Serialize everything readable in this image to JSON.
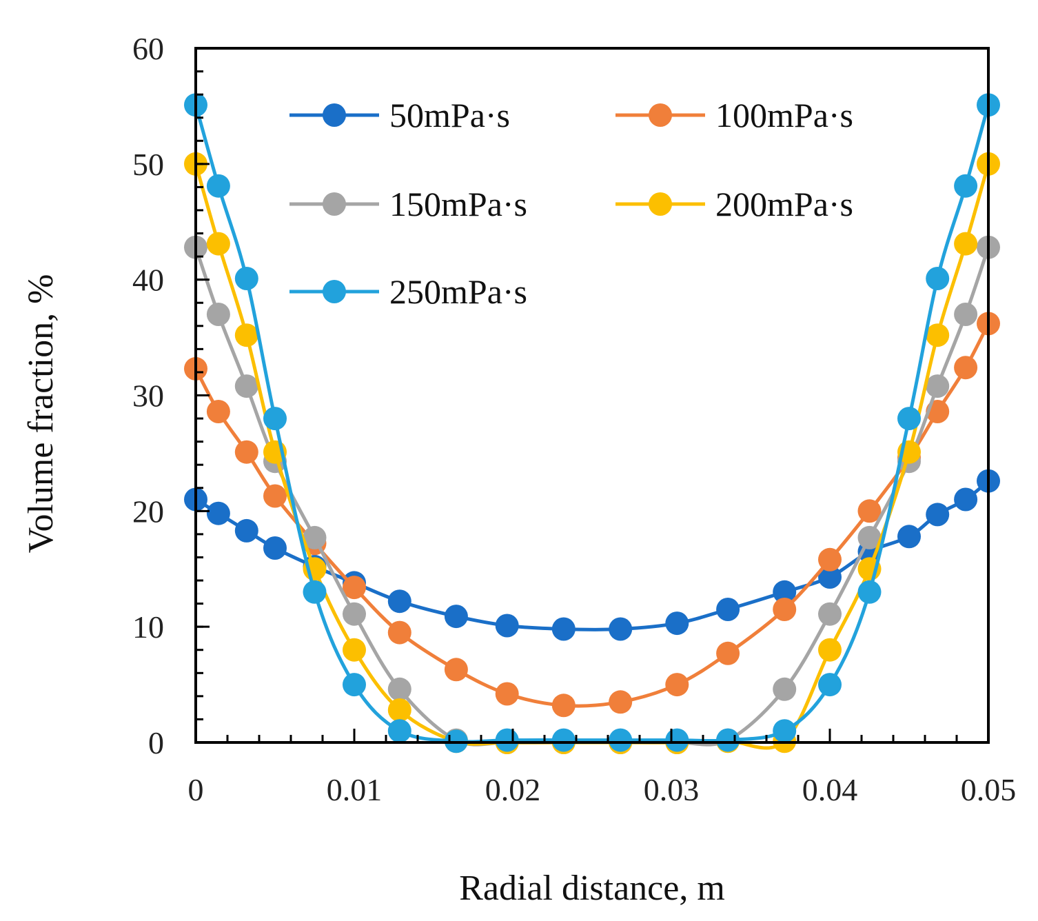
{
  "chart_data": {
    "type": "line",
    "title": "",
    "xlabel": "Radial distance, m",
    "ylabel": "Volume fraction, %",
    "xlim": [
      0,
      0.05
    ],
    "ylim": [
      0,
      60
    ],
    "xticks": [
      0,
      0.01,
      0.02,
      0.03,
      0.04,
      0.05
    ],
    "xtick_labels": [
      "0",
      "0.01",
      "0.02",
      "0.03",
      "0.04",
      "0.05"
    ],
    "yticks": [
      0,
      10,
      20,
      30,
      40,
      50,
      60
    ],
    "ytick_labels": [
      "0",
      "10",
      "20",
      "30",
      "40",
      "50",
      "60"
    ],
    "grid": false,
    "legend_position": "top",
    "x": [
      0,
      0.00143,
      0.00321,
      0.005,
      0.0075,
      0.01,
      0.01286,
      0.01643,
      0.01964,
      0.02321,
      0.02679,
      0.03036,
      0.03357,
      0.03714,
      0.04,
      0.0425,
      0.045,
      0.04679,
      0.04857,
      0.05
    ],
    "series": [
      {
        "name": "50mPa·s",
        "color": "#1a6fc8",
        "values": [
          21,
          19.8,
          18.3,
          16.8,
          15.2,
          13.8,
          12.2,
          10.9,
          10.1,
          9.8,
          9.8,
          10.3,
          11.5,
          13,
          14.3,
          16.5,
          17.8,
          19.7,
          21,
          22.6
        ]
      },
      {
        "name": "100mPa·s",
        "color": "#f07f3a",
        "values": [
          32.3,
          28.6,
          25.1,
          21.3,
          17.2,
          13.4,
          9.5,
          6.3,
          4.2,
          3.2,
          3.5,
          5,
          7.7,
          11.5,
          15.8,
          20,
          24.6,
          28.6,
          32.4,
          36.2
        ]
      },
      {
        "name": "150mPa·s",
        "color": "#a5a5a5",
        "values": [
          42.8,
          37,
          30.8,
          24.3,
          17.7,
          11.1,
          4.6,
          0.2,
          0,
          0,
          0,
          0,
          0.2,
          4.6,
          11.1,
          17.7,
          24.3,
          30.8,
          37,
          42.8
        ]
      },
      {
        "name": "200mPa·s",
        "color": "#fcbf00",
        "values": [
          50,
          43.1,
          35.2,
          25.1,
          15,
          8,
          2.8,
          0.1,
          0,
          0,
          0,
          0,
          0.1,
          0.1,
          8,
          15,
          25.1,
          35.2,
          43.1,
          50
        ]
      },
      {
        "name": "250mPa·s",
        "color": "#22a2dc",
        "values": [
          55.1,
          48.1,
          40.1,
          28,
          13,
          5,
          1,
          0.1,
          0.2,
          0.2,
          0.2,
          0.2,
          0.2,
          1,
          5,
          13,
          28,
          40.1,
          48.1,
          55.1
        ]
      }
    ]
  }
}
